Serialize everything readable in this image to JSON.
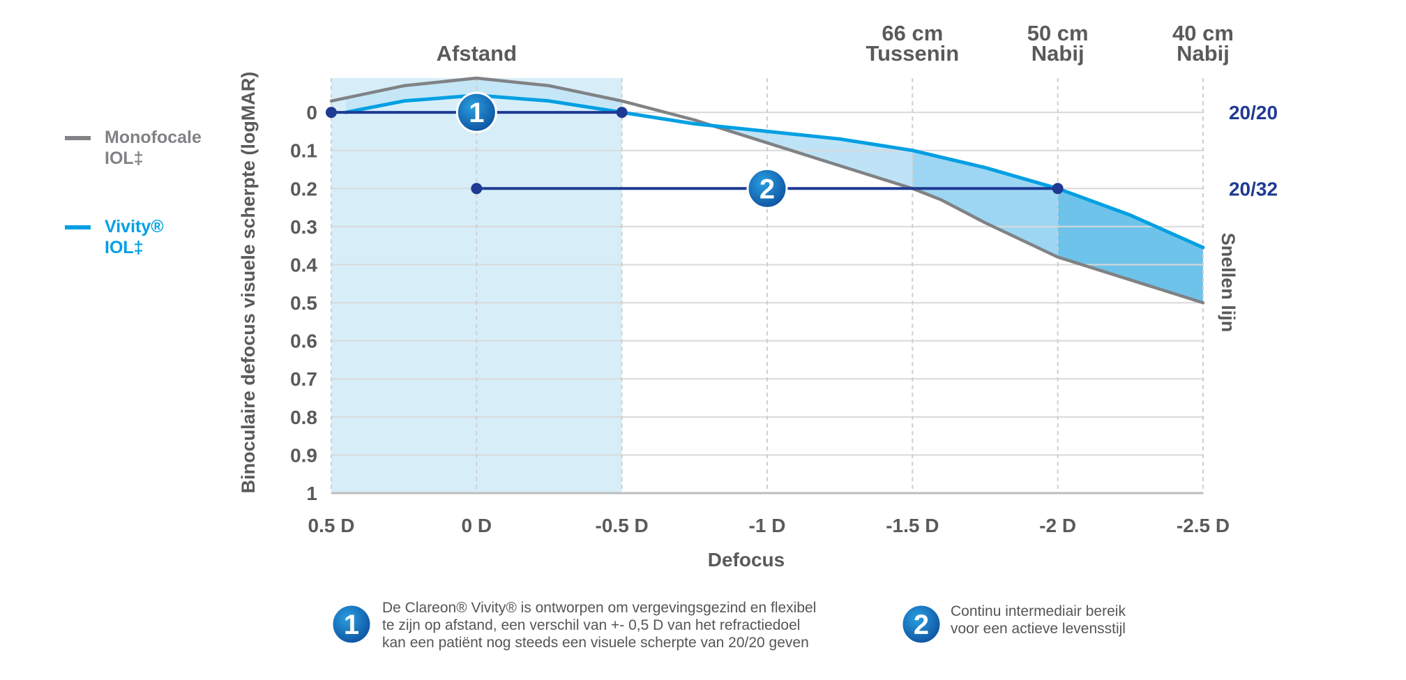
{
  "colors": {
    "monofocal": "#808285",
    "vivity": "#009fe3",
    "navy": "#1f3a93",
    "distance_band": "#d7eef9",
    "fill_light": "#bfe3f6",
    "fill_mid": "#9dd6f2",
    "fill_dark": "#6ec3ea",
    "grid": "#d9d9d9",
    "text": "#5a5a5a"
  },
  "legend": [
    {
      "key": "monofocal",
      "line1": "Monofocale",
      "line2": "IOL‡"
    },
    {
      "key": "vivity",
      "line1": "Vivity®",
      "line2": "IOL‡"
    }
  ],
  "chart_data": {
    "type": "line",
    "xlabel": "Defocus",
    "ylabel": "Binoculaire defocus visuele scherpte (logMAR)",
    "right_label": "Snellen lijn",
    "xlim": [
      0.5,
      -2.5
    ],
    "ylim": [
      1.0,
      -0.09
    ],
    "y_inverted": true,
    "x_ticks": [
      {
        "value": 0.5,
        "label": "0.5 D"
      },
      {
        "value": 0,
        "label": "0 D"
      },
      {
        "value": -0.5,
        "label": "-0.5 D"
      },
      {
        "value": -1,
        "label": "-1 D"
      },
      {
        "value": -1.5,
        "label": "-1.5 D"
      },
      {
        "value": -2,
        "label": "-2 D"
      },
      {
        "value": -2.5,
        "label": "-2.5 D"
      }
    ],
    "y_ticks": [
      {
        "value": 0,
        "label": "0"
      },
      {
        "value": 0.1,
        "label": "0.1"
      },
      {
        "value": 0.2,
        "label": "0.2"
      },
      {
        "value": 0.3,
        "label": "0.3"
      },
      {
        "value": 0.4,
        "label": "0.4"
      },
      {
        "value": 0.5,
        "label": "0.5"
      },
      {
        "value": 0.6,
        "label": "0.6"
      },
      {
        "value": 0.7,
        "label": "0.7"
      },
      {
        "value": 0.8,
        "label": "0.8"
      },
      {
        "value": 0.9,
        "label": "0.9"
      },
      {
        "value": 1,
        "label": "1"
      }
    ],
    "snellen_labels": [
      {
        "value": 0,
        "label": "20/20"
      },
      {
        "value": 0.2,
        "label": "20/32"
      }
    ],
    "distance_labels": [
      {
        "x": 0,
        "line1": "",
        "line2": "Afstand"
      },
      {
        "x": -1.5,
        "line1": "66 cm",
        "line2": "Tussenin"
      },
      {
        "x": -2,
        "line1": "50 cm",
        "line2": "Nabij"
      },
      {
        "x": -2.5,
        "line1": "40 cm",
        "line2": "Nabij"
      }
    ],
    "distance_band": [
      0.5,
      -0.5
    ],
    "series": [
      {
        "key": "monofocal",
        "name": "Monofocale IOL‡",
        "x": [
          0.5,
          0.25,
          0,
          -0.25,
          -0.5,
          -0.75,
          -1,
          -1.25,
          -1.5,
          -1.6,
          -1.75,
          -2,
          -2.25,
          -2.5
        ],
        "y": [
          -0.03,
          -0.07,
          -0.09,
          -0.07,
          -0.03,
          0.02,
          0.08,
          0.14,
          0.2,
          0.23,
          0.29,
          0.38,
          0.44,
          0.5
        ]
      },
      {
        "key": "vivity",
        "name": "Vivity® IOL‡",
        "x": [
          0.45,
          0.25,
          0,
          -0.25,
          -0.5,
          -0.75,
          -1,
          -1.25,
          -1.5,
          -1.75,
          -2,
          -2.25,
          -2.5
        ],
        "y": [
          0,
          -0.03,
          -0.045,
          -0.03,
          0,
          0.03,
          0.05,
          0.07,
          0.1,
          0.145,
          0.2,
          0.27,
          0.355
        ]
      }
    ],
    "ranges": [
      {
        "marker": "1",
        "y": 0,
        "x_start": 0.5,
        "x_end": -0.5,
        "badge_x": 0
      },
      {
        "marker": "2",
        "y": 0.2,
        "x_start": 0,
        "x_end": -2,
        "badge_x": -1
      }
    ]
  },
  "notes": [
    {
      "marker": "1",
      "lines": [
        "De Clareon® Vivity® is ontworpen om vergevingsgezind en flexibel",
        "te zijn op afstand, een verschil van +- 0,5 D van het refractiedoel",
        "kan een patiënt nog steeds een visuele scherpte van 20/20 geven"
      ]
    },
    {
      "marker": "2",
      "lines": [
        "Continu intermediair bereik",
        "voor een actieve levensstijl"
      ]
    }
  ]
}
